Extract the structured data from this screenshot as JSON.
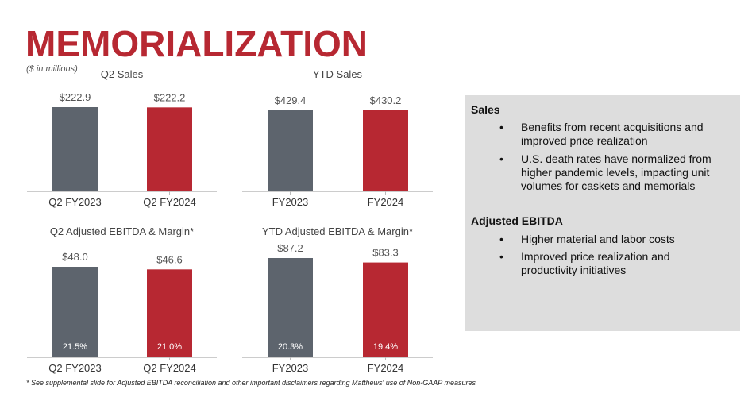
{
  "title": "MEMORIALIZATION",
  "units": "($ in millions)",
  "colors": {
    "accent": "#b72832",
    "gray": "#5d646d",
    "panel": "#dddddd"
  },
  "chart_data": [
    {
      "type": "bar",
      "title": "Q2 Sales",
      "categories": [
        "Q2 FY2023",
        "Q2 FY2024"
      ],
      "values": [
        222.9,
        222.2
      ],
      "labels": [
        "$222.9",
        "$222.2"
      ]
    },
    {
      "type": "bar",
      "title": "YTD Sales",
      "categories": [
        "FY2023",
        "FY2024"
      ],
      "values": [
        429.4,
        430.2
      ],
      "labels": [
        "$429.4",
        "$430.2"
      ]
    },
    {
      "type": "bar",
      "title": "Q2 Adjusted EBITDA & Margin*",
      "categories": [
        "Q2 FY2023",
        "Q2 FY2024"
      ],
      "values": [
        48.0,
        46.6
      ],
      "labels": [
        "$48.0",
        "$46.6"
      ],
      "margins": [
        "21.5%",
        "21.0%"
      ]
    },
    {
      "type": "bar",
      "title": "YTD Adjusted EBITDA & Margin*",
      "categories": [
        "FY2023",
        "FY2024"
      ],
      "values": [
        87.2,
        83.3
      ],
      "labels": [
        "$87.2",
        "$83.3"
      ],
      "margins": [
        "20.3%",
        "19.4%"
      ]
    }
  ],
  "panel": {
    "sections": [
      {
        "heading": "Sales",
        "bullets": [
          "Benefits from recent acquisitions and improved price realization",
          "U.S. death rates have normalized from higher pandemic levels, impacting unit volumes for caskets and memorials"
        ]
      },
      {
        "heading": "Adjusted EBITDA",
        "bullets": [
          "Higher material and labor costs",
          "Improved price realization and productivity initiatives"
        ]
      }
    ]
  },
  "footnote": "* See supplemental slide for Adjusted EBITDA reconciliation and other important disclaimers regarding Matthews' use of Non-GAAP measures"
}
